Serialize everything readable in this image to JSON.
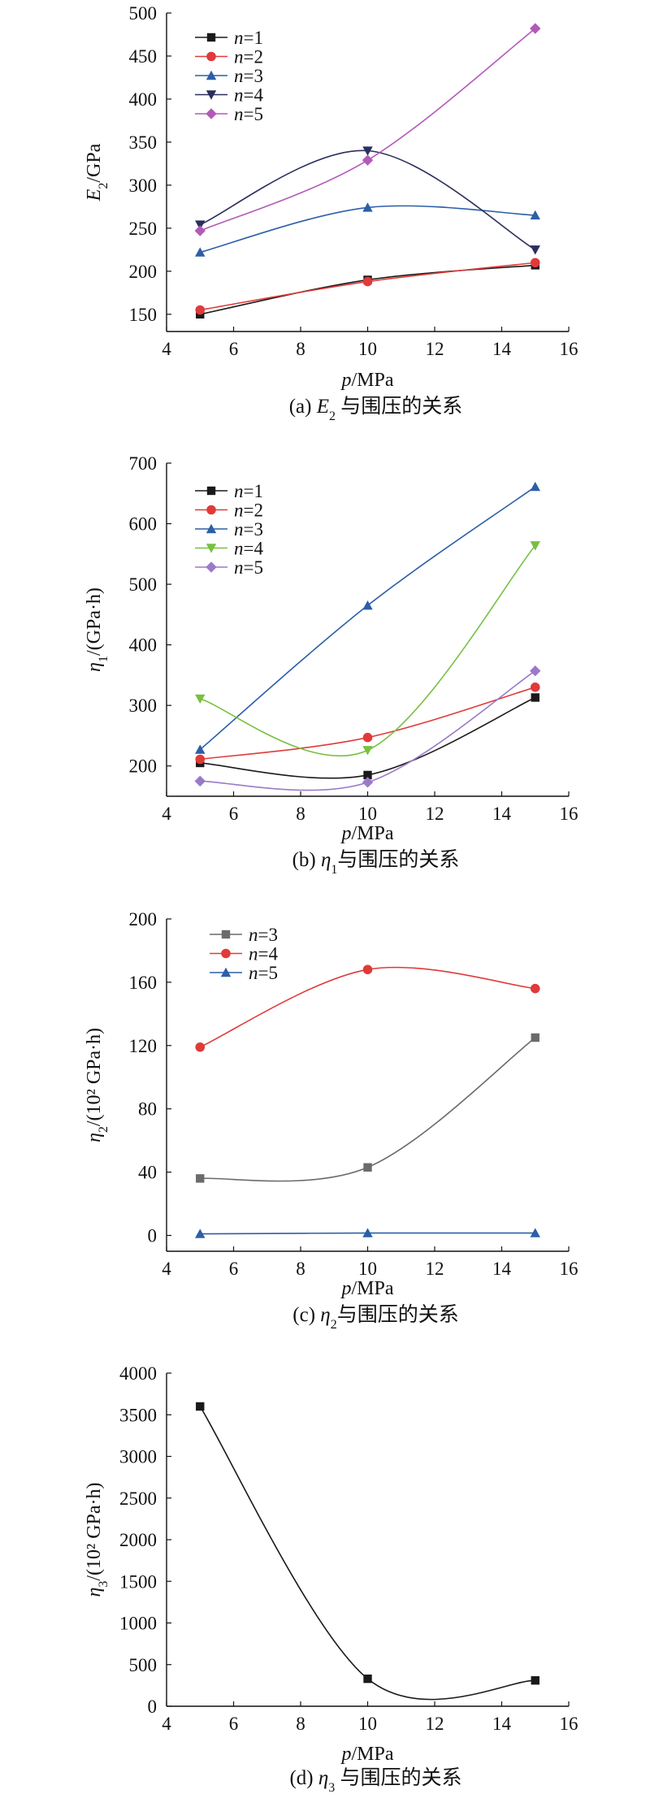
{
  "chart_data": [
    {
      "type": "line",
      "panel": "a",
      "x": [
        5,
        10,
        15
      ],
      "xlim": [
        4,
        16
      ],
      "xticks": [
        4,
        6,
        8,
        10,
        12,
        14,
        16
      ],
      "ylim": [
        130,
        500
      ],
      "yticks": [
        150,
        200,
        250,
        300,
        350,
        400,
        450,
        500
      ],
      "ylabel": "E2/GPa",
      "xlabel": "p/MPa",
      "caption": "(a) E2 与围压的关系",
      "legend_position": "top-left",
      "series": [
        {
          "name": "n=1",
          "values": [
            150,
            190,
            207
          ],
          "color": "#1a1a1a",
          "marker": "square"
        },
        {
          "name": "n=2",
          "values": [
            155,
            188,
            210
          ],
          "color": "#e03a3a",
          "marker": "circle"
        },
        {
          "name": "n=3",
          "values": [
            222,
            274,
            265
          ],
          "color": "#2c5fa8",
          "marker": "triangle-up"
        },
        {
          "name": "n=4",
          "values": [
            254,
            340,
            225
          ],
          "color": "#2b2f5e",
          "marker": "triangle-down"
        },
        {
          "name": "n=5",
          "values": [
            247,
            329,
            482
          ],
          "color": "#b25ab8",
          "marker": "diamond"
        }
      ]
    },
    {
      "type": "line",
      "panel": "b",
      "x": [
        5,
        10,
        15
      ],
      "xlim": [
        4,
        16
      ],
      "xticks": [
        4,
        6,
        8,
        10,
        12,
        14,
        16
      ],
      "ylim": [
        150,
        700
      ],
      "yticks": [
        200,
        300,
        400,
        500,
        600,
        700
      ],
      "ylabel": "η1/(GPa·h)",
      "xlabel": "p/MPa",
      "caption": "(b) η1与围压的关系",
      "legend_position": "top-left",
      "series": [
        {
          "name": "n=1",
          "values": [
            205,
            185,
            313
          ],
          "color": "#1a1a1a",
          "marker": "square"
        },
        {
          "name": "n=2",
          "values": [
            211,
            247,
            330
          ],
          "color": "#e03a3a",
          "marker": "circle"
        },
        {
          "name": "n=3",
          "values": [
            227,
            465,
            661
          ],
          "color": "#2c5fa8",
          "marker": "triangle-up"
        },
        {
          "name": "n=4",
          "values": [
            311,
            226,
            564
          ],
          "color": "#78c040",
          "marker": "triangle-down"
        },
        {
          "name": "n=5",
          "values": [
            175,
            173,
            357
          ],
          "color": "#9a7ac8",
          "marker": "diamond"
        }
      ]
    },
    {
      "type": "line",
      "panel": "c",
      "x": [
        5,
        10,
        15
      ],
      "xlim": [
        4,
        16
      ],
      "xticks": [
        4,
        6,
        8,
        10,
        12,
        14,
        16
      ],
      "ylim": [
        -10,
        200
      ],
      "yticks": [
        0,
        40,
        80,
        120,
        160,
        200
      ],
      "ylabel": "η2/(10² GPa·h)",
      "xlabel": "p/MPa",
      "caption": "(c) η2与围压的关系",
      "legend_position": "top-left",
      "series": [
        {
          "name": "n=3",
          "values": [
            36,
            43,
            125
          ],
          "color": "#6b6b6b",
          "marker": "square"
        },
        {
          "name": "n=4",
          "values": [
            119,
            168,
            156
          ],
          "color": "#e03a3a",
          "marker": "circle"
        },
        {
          "name": "n=5",
          "values": [
            1,
            1.5,
            1.5
          ],
          "color": "#2c5fa8",
          "marker": "triangle-up"
        }
      ]
    },
    {
      "type": "line",
      "panel": "d",
      "x": [
        5,
        10,
        15
      ],
      "xlim": [
        4,
        16
      ],
      "xticks": [
        4,
        6,
        8,
        10,
        12,
        14,
        16
      ],
      "ylim": [
        0,
        4000
      ],
      "yticks": [
        0,
        500,
        1000,
        1500,
        2000,
        2500,
        3000,
        3500,
        4000
      ],
      "ylabel": "η3/(10² GPa·h)",
      "xlabel": "p/MPa",
      "caption": "(d) η3 与围压的关系",
      "legend_position": "none",
      "series": [
        {
          "name": "",
          "values": [
            3600,
            330,
            310
          ],
          "color": "#1a1a1a",
          "marker": "square"
        }
      ]
    }
  ]
}
